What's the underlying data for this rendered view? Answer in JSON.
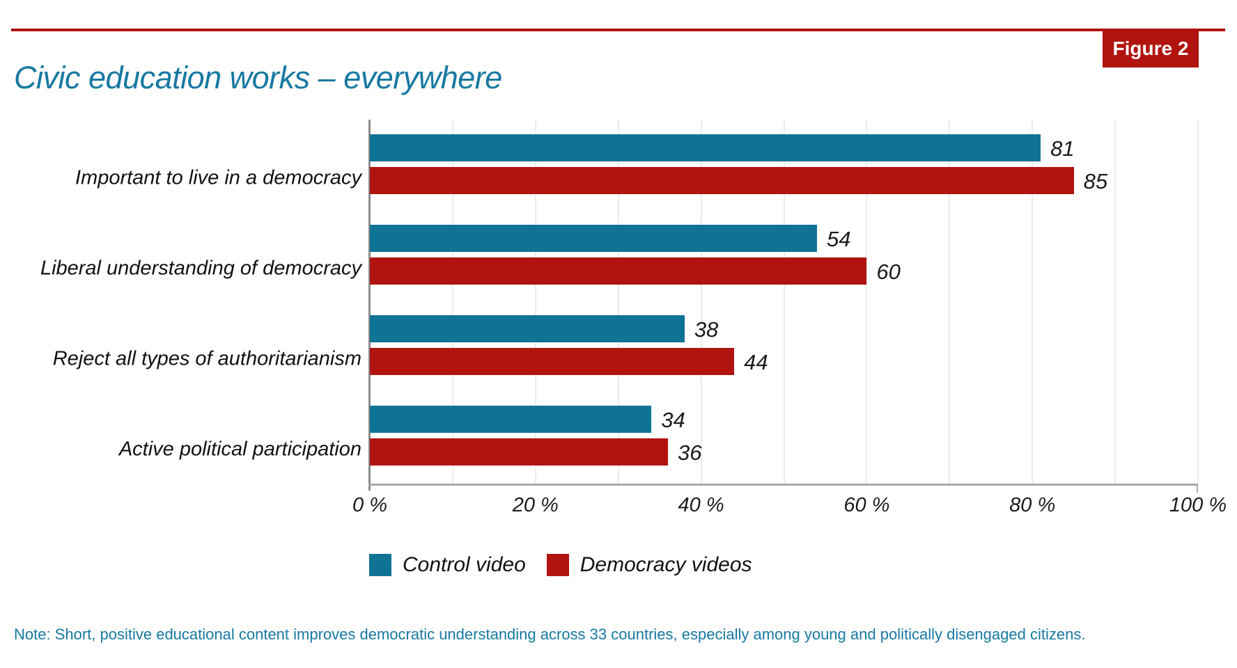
{
  "figure_badge": "Figure 2",
  "title": "Civic education works – everywhere",
  "note": "Note: Short, positive educational content improves democratic understanding across 33 countries, especially among young and politically disengaged citizens.",
  "colors": {
    "accent_red": "#b1130f",
    "accent_blue": "#0f7396",
    "title_teal": "#1779a1",
    "grid": "#ececec",
    "axis": "#a9a9a9",
    "text": "#1a1a1a"
  },
  "legend": {
    "items": [
      {
        "label": "Control video",
        "color": "#0f7396"
      },
      {
        "label": "Democracy videos",
        "color": "#b1130f"
      }
    ]
  },
  "chart_data": {
    "type": "bar",
    "orientation": "horizontal",
    "title": "Civic education works – everywhere",
    "categories": [
      "Important to live in a democracy",
      "Liberal understanding of democracy",
      "Reject all types of authoritarianism",
      "Active political participation"
    ],
    "series": [
      {
        "name": "Control video",
        "color": "#0f7396",
        "values": [
          81,
          54,
          38,
          34
        ]
      },
      {
        "name": "Democracy videos",
        "color": "#b1130f",
        "values": [
          85,
          60,
          44,
          36
        ]
      }
    ],
    "xlim": [
      0,
      100
    ],
    "x_ticks": [
      0,
      20,
      40,
      60,
      80,
      100
    ],
    "x_tick_labels": [
      "0 %",
      "20 %",
      "40 %",
      "60 %",
      "80 %",
      "100 %"
    ],
    "gridlines_every_percent": 10,
    "grid": true,
    "value_labels_shown": true,
    "legend_position": "bottom",
    "xlabel": "",
    "ylabel": ""
  }
}
